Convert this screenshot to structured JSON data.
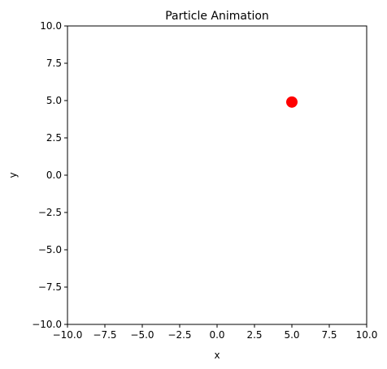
{
  "chart_data": {
    "type": "scatter",
    "title": "Particle Animation",
    "xlabel": "x",
    "ylabel": "y",
    "xlim": [
      -10,
      10
    ],
    "ylim": [
      -10,
      10
    ],
    "xticks": [
      -10.0,
      -7.5,
      -5.0,
      -2.5,
      0.0,
      2.5,
      5.0,
      7.5,
      10.0
    ],
    "yticks": [
      -10.0,
      -7.5,
      -5.0,
      -2.5,
      0.0,
      2.5,
      5.0,
      7.5,
      10.0
    ],
    "xtick_labels": [
      "−10.0",
      "−7.5",
      "−5.0",
      "−2.5",
      "0.0",
      "2.5",
      "5.0",
      "7.5",
      "10.0"
    ],
    "ytick_labels": [
      "−10.0",
      "−7.5",
      "−5.0",
      "−2.5",
      "0.0",
      "2.5",
      "5.0",
      "7.5",
      "10.0"
    ],
    "grid": false,
    "points": [
      {
        "x": 5.0,
        "y": 4.9,
        "color": "#ff0000"
      }
    ]
  }
}
